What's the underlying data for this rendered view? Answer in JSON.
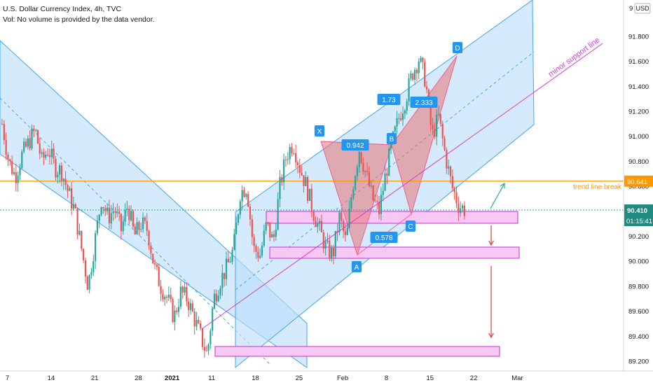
{
  "header": {
    "title": "U.S. Dollar Currency Index, 4h, TVC",
    "subtitle": "Vol: No volume is provided by the data vendor."
  },
  "price_axis": {
    "currency": "USD",
    "top_label": "9",
    "ticks": [
      "91.800",
      "91.600",
      "91.400",
      "91.200",
      "91.000",
      "90.800",
      "90.600",
      "90.400",
      "90.200",
      "90.000",
      "89.800",
      "89.600",
      "89.400",
      "89.200"
    ],
    "tick_values": [
      91.8,
      91.6,
      91.4,
      91.2,
      91.0,
      90.8,
      90.6,
      90.4,
      90.2,
      90.0,
      89.8,
      89.6,
      89.4,
      89.2
    ],
    "current_price": "90.410",
    "countdown": "01:15:41",
    "line_price_label": "90.641"
  },
  "time_axis": {
    "ticks": [
      "7",
      "14",
      "21",
      "28",
      "2021",
      "11",
      "18",
      "25",
      "Feb",
      "8",
      "15",
      "22",
      "Mar"
    ]
  },
  "annotations": {
    "trend_line_break": "trend line break",
    "minor_support_line": "minor support line",
    "pattern_points": [
      "X",
      "A",
      "B",
      "C",
      "D"
    ],
    "ratios": [
      "0.942",
      "1.73",
      "2.333",
      "0.578"
    ]
  },
  "colors": {
    "bull": "#26a69a",
    "bear": "#ef5350",
    "channel_fill": "#bbdefb",
    "channel_line": "#42a5f5",
    "zone_fill": "#f8c8f5",
    "zone_line": "#c62fd0",
    "pattern_fill": "#e57373",
    "label_bg": "#2196f3",
    "orange": "#ff9800",
    "support": "#d63bd4",
    "arrow_red": "#e53935",
    "arrow_green": "#26a69a"
  },
  "chart_data": {
    "type": "candlestick",
    "title": "U.S. Dollar Currency Index, 4h, TVC",
    "ylim": [
      89.15,
      92.0
    ],
    "horizontal_line": 90.641,
    "current_price": 90.41,
    "close_path": [
      {
        "d": 0,
        "v": 91.1
      },
      {
        "d": 1,
        "v": 90.8
      },
      {
        "d": 2,
        "v": 90.68
      },
      {
        "d": 3,
        "v": 90.85
      },
      {
        "d": 4,
        "v": 90.95
      },
      {
        "d": 5,
        "v": 91.05
      },
      {
        "d": 6,
        "v": 90.8
      },
      {
        "d": 7,
        "v": 90.9
      },
      {
        "d": 8,
        "v": 90.75
      },
      {
        "d": 9,
        "v": 90.72
      },
      {
        "d": 10,
        "v": 90.55
      },
      {
        "d": 11,
        "v": 90.4
      },
      {
        "d": 12,
        "v": 90.1
      },
      {
        "d": 13,
        "v": 89.8
      },
      {
        "d": 14,
        "v": 90.15
      },
      {
        "d": 15,
        "v": 90.5
      },
      {
        "d": 16,
        "v": 90.35
      },
      {
        "d": 17,
        "v": 90.42
      },
      {
        "d": 18,
        "v": 90.25
      },
      {
        "d": 19,
        "v": 90.45
      },
      {
        "d": 20,
        "v": 90.2
      },
      {
        "d": 21,
        "v": 90.3
      },
      {
        "d": 22,
        "v": 90.25
      },
      {
        "d": 23,
        "v": 89.95
      },
      {
        "d": 24,
        "v": 89.8
      },
      {
        "d": 25,
        "v": 89.7
      },
      {
        "d": 26,
        "v": 89.55
      },
      {
        "d": 27,
        "v": 89.75
      },
      {
        "d": 28,
        "v": 89.7
      },
      {
        "d": 29,
        "v": 89.55
      },
      {
        "d": 30,
        "v": 89.4
      },
      {
        "d": 31,
        "v": 89.25
      },
      {
        "d": 32,
        "v": 89.7
      },
      {
        "d": 33,
        "v": 89.85
      },
      {
        "d": 34,
        "v": 89.95
      },
      {
        "d": 35,
        "v": 90.1
      },
      {
        "d": 36,
        "v": 90.55
      },
      {
        "d": 37,
        "v": 90.6
      },
      {
        "d": 38,
        "v": 90.1
      },
      {
        "d": 39,
        "v": 90.05
      },
      {
        "d": 40,
        "v": 90.3
      },
      {
        "d": 41,
        "v": 90.15
      },
      {
        "d": 42,
        "v": 90.6
      },
      {
        "d": 43,
        "v": 90.85
      },
      {
        "d": 44,
        "v": 90.95
      },
      {
        "d": 45,
        "v": 90.75
      },
      {
        "d": 46,
        "v": 90.6
      },
      {
        "d": 47,
        "v": 90.4
      },
      {
        "d": 48,
        "v": 90.25
      },
      {
        "d": 49,
        "v": 90.1
      },
      {
        "d": 50,
        "v": 90.05
      },
      {
        "d": 51,
        "v": 90.35
      },
      {
        "d": 52,
        "v": 90.15
      },
      {
        "d": 53,
        "v": 90.6
      },
      {
        "d": 54,
        "v": 90.9
      },
      {
        "d": 55,
        "v": 90.7
      },
      {
        "d": 56,
        "v": 90.5
      },
      {
        "d": 57,
        "v": 90.4
      },
      {
        "d": 58,
        "v": 90.7
      },
      {
        "d": 59,
        "v": 90.95
      },
      {
        "d": 60,
        "v": 91.15
      },
      {
        "d": 61,
        "v": 91.3
      },
      {
        "d": 62,
        "v": 91.5
      },
      {
        "d": 63,
        "v": 91.62
      },
      {
        "d": 64,
        "v": 91.45
      },
      {
        "d": 65,
        "v": 91.0
      },
      {
        "d": 66,
        "v": 91.15
      },
      {
        "d": 67,
        "v": 90.85
      },
      {
        "d": 68,
        "v": 90.6
      },
      {
        "d": 69,
        "v": 90.45
      },
      {
        "d": 70,
        "v": 90.41
      }
    ],
    "time_ticks": [
      {
        "label": "7",
        "d": 0.8
      },
      {
        "label": "14",
        "d": 7.4
      },
      {
        "label": "21",
        "d": 14.0
      },
      {
        "label": "28",
        "d": 20.6
      },
      {
        "label": "2021",
        "d": 25.7
      },
      {
        "label": "11",
        "d": 31.7
      },
      {
        "label": "18",
        "d": 38.3
      },
      {
        "label": "25",
        "d": 44.9
      },
      {
        "label": "Feb",
        "d": 51.5
      },
      {
        "label": "8",
        "d": 58.1
      },
      {
        "label": "15",
        "d": 64.7
      },
      {
        "label": "22",
        "d": 71.3
      },
      {
        "label": "Mar",
        "d": 77.9
      }
    ]
  }
}
